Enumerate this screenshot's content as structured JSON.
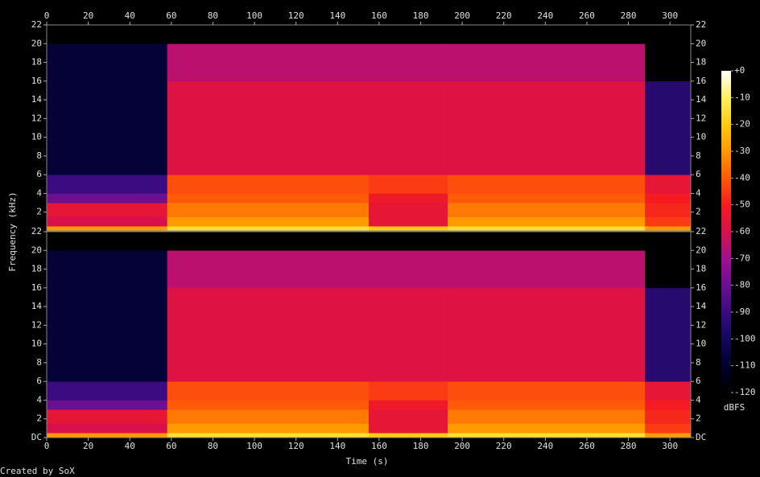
{
  "chart_data": {
    "type": "spectrogram",
    "xlabel": "Time (s)",
    "ylabel": "Frequency (kHz)",
    "footer": "Created by SoX",
    "xlim": [
      0,
      310
    ],
    "xticks": [
      0,
      20,
      40,
      60,
      80,
      100,
      120,
      140,
      160,
      180,
      200,
      220,
      240,
      260,
      280,
      300
    ],
    "xbins": [
      0,
      58,
      155,
      193,
      288,
      310
    ],
    "ybins": [
      0,
      0.5,
      1.5,
      3,
      4,
      6,
      16,
      20,
      22
    ],
    "colormap": [
      "#000000",
      "#00002e",
      "#12085a",
      "#3a0c80",
      "#6a1090",
      "#a01090",
      "#d8104c",
      "#f41c20",
      "#ff5a08",
      "#ff9a00",
      "#ffcc10",
      "#fff060",
      "#ffffff"
    ],
    "colorbar": {
      "label": "dBFS",
      "lim": [
        -120,
        0
      ],
      "ticks": [
        {
          "value": 0,
          "label": "+0"
        },
        -10,
        -20,
        -30,
        -40,
        -50,
        -60,
        -70,
        -80,
        -90,
        -100,
        -110,
        -120
      ]
    },
    "channels": [
      {
        "ylim": [
          0,
          22
        ],
        "yticks": [
          2,
          4,
          6,
          8,
          10,
          12,
          14,
          16,
          18,
          20,
          22
        ],
        "values": [
          [
            -30,
            -15,
            -20,
            -15,
            -30
          ],
          [
            -60,
            -30,
            -55,
            -30,
            -45
          ],
          [
            -55,
            -35,
            -55,
            -35,
            -48
          ],
          [
            -80,
            -40,
            -52,
            -40,
            -50
          ],
          [
            -90,
            -42,
            -45,
            -42,
            -55
          ],
          [
            -108,
            -58,
            -58,
            -58,
            -95
          ],
          [
            -108,
            -65,
            -65,
            -65,
            -120
          ],
          [
            -120,
            -120,
            -120,
            -120,
            -120
          ]
        ]
      },
      {
        "ylim": [
          0,
          22
        ],
        "yticks": [
          {
            "value": 0,
            "label": "DC"
          },
          2,
          4,
          6,
          8,
          10,
          12,
          14,
          16,
          18,
          20,
          22
        ],
        "values": [
          [
            -30,
            -15,
            -20,
            -15,
            -30
          ],
          [
            -60,
            -30,
            -55,
            -30,
            -45
          ],
          [
            -55,
            -35,
            -55,
            -35,
            -48
          ],
          [
            -80,
            -40,
            -52,
            -40,
            -50
          ],
          [
            -90,
            -42,
            -45,
            -42,
            -55
          ],
          [
            -108,
            -58,
            -58,
            -58,
            -95
          ],
          [
            -108,
            -65,
            -65,
            -65,
            -120
          ],
          [
            -120,
            -120,
            -120,
            -120,
            -120
          ]
        ]
      }
    ]
  }
}
